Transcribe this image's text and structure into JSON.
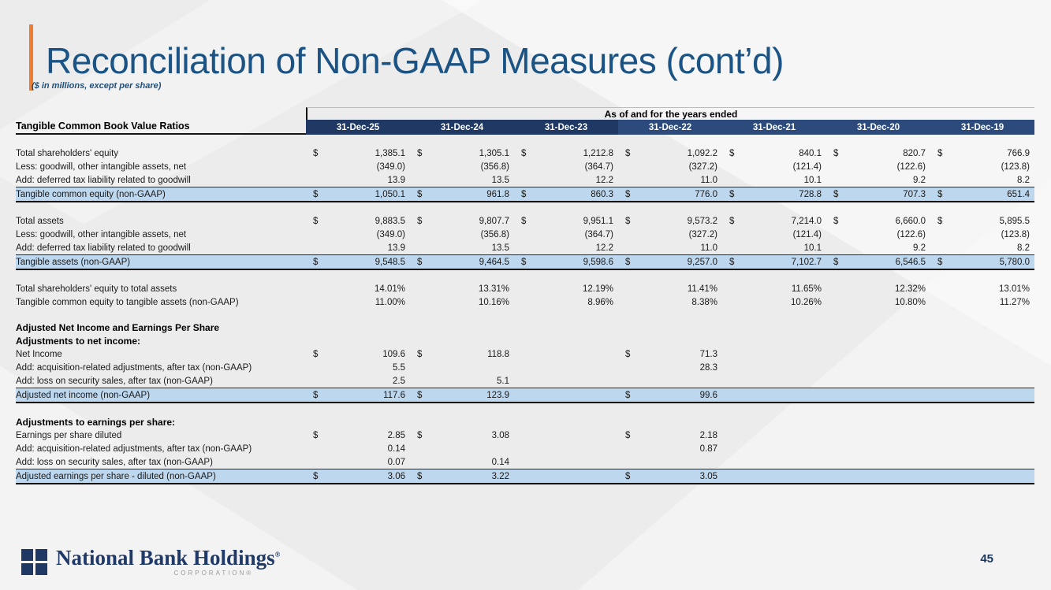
{
  "slide": {
    "title": "Reconciliation of Non-GAAP Measures (cont’d)",
    "subtitle": "($ in millions, except per share)",
    "page_number": "45",
    "colors": {
      "accent_orange": "#ED7D31",
      "title_blue": "#1B5484",
      "header_navy_dark": "#1F3864",
      "header_navy_light": "#2C4B7C",
      "highlight_blue": "#BDD7EE"
    }
  },
  "logo": {
    "name": "National Bank Holdings",
    "mark": "®",
    "sub": "CORPORATION®"
  },
  "table": {
    "span_header": "As of and for the years ended",
    "section_label": "Tangible Common Book Value Ratios",
    "columns": [
      "31-Dec-25",
      "31-Dec-24",
      "31-Dec-23",
      "31-Dec-22",
      "31-Dec-21",
      "31-Dec-20",
      "31-Dec-19"
    ],
    "rows": [
      {
        "type": "spacer"
      },
      {
        "type": "normal",
        "label": "Total shareholders' equity",
        "cells": [
          [
            "$",
            "1,385.1"
          ],
          [
            "$",
            "1,305.1"
          ],
          [
            "$",
            "1,212.8"
          ],
          [
            "$",
            "1,092.2"
          ],
          [
            "$",
            "840.1"
          ],
          [
            "$",
            "820.7"
          ],
          [
            "$",
            "766.9"
          ]
        ]
      },
      {
        "type": "normal",
        "label": "Less: goodwill, other intangible assets, net",
        "cells": [
          [
            "",
            "(349.0)"
          ],
          [
            "",
            "(356.8)"
          ],
          [
            "",
            "(364.7)"
          ],
          [
            "",
            "(327.2)"
          ],
          [
            "",
            "(121.4)"
          ],
          [
            "",
            "(122.6)"
          ],
          [
            "",
            "(123.8)"
          ]
        ]
      },
      {
        "type": "normal",
        "label": "Add: deferred tax liability related to goodwill",
        "cells": [
          [
            "",
            "13.9"
          ],
          [
            "",
            "13.5"
          ],
          [
            "",
            "12.2"
          ],
          [
            "",
            "11.0"
          ],
          [
            "",
            "10.1"
          ],
          [
            "",
            "9.2"
          ],
          [
            "",
            "8.2"
          ]
        ]
      },
      {
        "type": "total",
        "label": "Tangible common equity (non-GAAP)",
        "cells": [
          [
            "$",
            "1,050.1"
          ],
          [
            "$",
            "961.8"
          ],
          [
            "$",
            "860.3"
          ],
          [
            "$",
            "776.0"
          ],
          [
            "$",
            "728.8"
          ],
          [
            "$",
            "707.3"
          ],
          [
            "$",
            "651.4"
          ]
        ]
      },
      {
        "type": "spacer"
      },
      {
        "type": "normal",
        "label": "Total assets",
        "cells": [
          [
            "$",
            "9,883.5"
          ],
          [
            "$",
            "9,807.7"
          ],
          [
            "$",
            "9,951.1"
          ],
          [
            "$",
            "9,573.2"
          ],
          [
            "$",
            "7,214.0"
          ],
          [
            "$",
            "6,660.0"
          ],
          [
            "$",
            "5,895.5"
          ]
        ]
      },
      {
        "type": "normal",
        "label": "Less: goodwill, other intangible assets, net",
        "cells": [
          [
            "",
            "(349.0)"
          ],
          [
            "",
            "(356.8)"
          ],
          [
            "",
            "(364.7)"
          ],
          [
            "",
            "(327.2)"
          ],
          [
            "",
            "(121.4)"
          ],
          [
            "",
            "(122.6)"
          ],
          [
            "",
            "(123.8)"
          ]
        ]
      },
      {
        "type": "normal",
        "label": "Add: deferred tax liability related to goodwill",
        "cells": [
          [
            "",
            "13.9"
          ],
          [
            "",
            "13.5"
          ],
          [
            "",
            "12.2"
          ],
          [
            "",
            "11.0"
          ],
          [
            "",
            "10.1"
          ],
          [
            "",
            "9.2"
          ],
          [
            "",
            "8.2"
          ]
        ]
      },
      {
        "type": "total",
        "label": "Tangible assets (non-GAAP)",
        "cells": [
          [
            "$",
            "9,548.5"
          ],
          [
            "$",
            "9,464.5"
          ],
          [
            "$",
            "9,598.6"
          ],
          [
            "$",
            "9,257.0"
          ],
          [
            "$",
            "7,102.7"
          ],
          [
            "$",
            "6,546.5"
          ],
          [
            "$",
            "5,780.0"
          ]
        ]
      },
      {
        "type": "spacer"
      },
      {
        "type": "normal",
        "label": "Total shareholders' equity to total assets",
        "cells": [
          [
            "",
            "14.01%"
          ],
          [
            "",
            "13.31%"
          ],
          [
            "",
            "12.19%"
          ],
          [
            "",
            "11.41%"
          ],
          [
            "",
            "11.65%"
          ],
          [
            "",
            "12.32%"
          ],
          [
            "",
            "13.01%"
          ]
        ]
      },
      {
        "type": "normal",
        "label": "Tangible common equity to tangible assets (non-GAAP)",
        "cells": [
          [
            "",
            "11.00%"
          ],
          [
            "",
            "10.16%"
          ],
          [
            "",
            "8.96%"
          ],
          [
            "",
            "8.38%"
          ],
          [
            "",
            "10.26%"
          ],
          [
            "",
            "10.80%"
          ],
          [
            "",
            "11.27%"
          ]
        ]
      },
      {
        "type": "spacer"
      },
      {
        "type": "heading",
        "label": "Adjusted Net Income and Earnings Per Share"
      },
      {
        "type": "heading",
        "label": "Adjustments to net income:"
      },
      {
        "type": "normal",
        "label": "Net Income",
        "cells": [
          [
            "$",
            "109.6"
          ],
          [
            "$",
            "118.8"
          ],
          [
            "",
            ""
          ],
          [
            "$",
            "71.3"
          ],
          [
            "",
            ""
          ],
          [
            "",
            ""
          ],
          [
            "",
            ""
          ]
        ]
      },
      {
        "type": "normal",
        "label": "Add: acquisition-related adjustments, after tax (non-GAAP)",
        "cells": [
          [
            "",
            "5.5"
          ],
          [
            "",
            ""
          ],
          [
            "",
            ""
          ],
          [
            "",
            "28.3"
          ],
          [
            "",
            ""
          ],
          [
            "",
            ""
          ],
          [
            "",
            ""
          ]
        ]
      },
      {
        "type": "normal",
        "label": "Add: loss on security sales, after tax (non-GAAP)",
        "cells": [
          [
            "",
            "2.5"
          ],
          [
            "",
            "5.1"
          ],
          [
            "",
            ""
          ],
          [
            "",
            ""
          ],
          [
            "",
            ""
          ],
          [
            "",
            ""
          ],
          [
            "",
            ""
          ]
        ]
      },
      {
        "type": "total",
        "label": "Adjusted net income (non-GAAP)",
        "cells": [
          [
            "$",
            "117.6"
          ],
          [
            "$",
            "123.9"
          ],
          [
            "",
            ""
          ],
          [
            "$",
            "99.6"
          ],
          [
            "",
            ""
          ],
          [
            "",
            ""
          ],
          [
            "",
            ""
          ]
        ]
      },
      {
        "type": "spacer"
      },
      {
        "type": "heading",
        "label": "Adjustments to earnings per share:"
      },
      {
        "type": "normal",
        "label": "Earnings per share diluted",
        "cells": [
          [
            "$",
            "2.85"
          ],
          [
            "$",
            "3.08"
          ],
          [
            "",
            ""
          ],
          [
            "$",
            "2.18"
          ],
          [
            "",
            ""
          ],
          [
            "",
            ""
          ],
          [
            "",
            ""
          ]
        ]
      },
      {
        "type": "normal",
        "label": "Add: acquisition-related adjustments, after tax (non-GAAP)",
        "cells": [
          [
            "",
            "0.14"
          ],
          [
            "",
            ""
          ],
          [
            "",
            ""
          ],
          [
            "",
            "0.87"
          ],
          [
            "",
            ""
          ],
          [
            "",
            ""
          ],
          [
            "",
            ""
          ]
        ]
      },
      {
        "type": "normal",
        "label": "Add: loss on security sales, after tax (non-GAAP)",
        "cells": [
          [
            "",
            "0.07"
          ],
          [
            "",
            "0.14"
          ],
          [
            "",
            ""
          ],
          [
            "",
            ""
          ],
          [
            "",
            ""
          ],
          [
            "",
            ""
          ],
          [
            "",
            ""
          ]
        ]
      },
      {
        "type": "total",
        "label": "Adjusted earnings per share - diluted (non-GAAP)",
        "cells": [
          [
            "$",
            "3.06"
          ],
          [
            "$",
            "3.22"
          ],
          [
            "",
            ""
          ],
          [
            "$",
            "3.05"
          ],
          [
            "",
            ""
          ],
          [
            "",
            ""
          ],
          [
            "",
            ""
          ]
        ]
      }
    ]
  }
}
